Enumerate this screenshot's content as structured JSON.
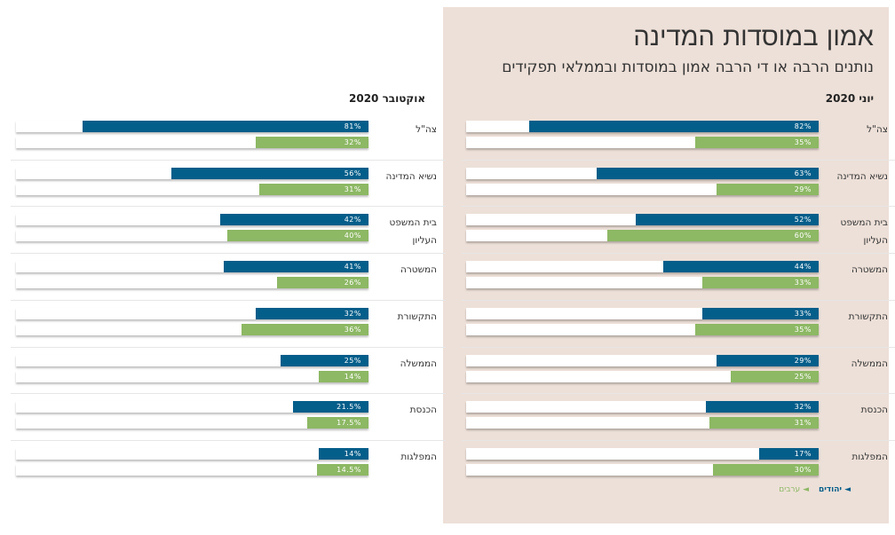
{
  "title": "אמון במוסדות המדינה",
  "subtitle": "נותנים הרבה או די הרבה אמון במוסדות ובממלאי תפקידים",
  "colors": {
    "jews": "#045e8a",
    "arabs": "#8db864",
    "panel_bg": "#ede0d8"
  },
  "legend": {
    "jews": "יהודים",
    "arabs": "ערבים",
    "marker": "◄"
  },
  "chart_data": [
    {
      "type": "bar",
      "title": "יוני 2020",
      "unit": "%",
      "xlim": [
        0,
        100
      ],
      "categories": [
        "צה\"ל",
        "נשיא המדינה",
        "בית המשפט העליון",
        "המשטרה",
        "התקשורת",
        "הממשלה",
        "הכנסת",
        "המפלגות"
      ],
      "series": [
        {
          "name": "יהודים",
          "values": [
            82,
            63,
            52,
            44,
            33,
            29,
            32,
            17
          ],
          "labels": [
            "82%",
            "63%",
            "52%",
            "44%",
            "33%",
            "29%",
            "32%",
            "17%"
          ]
        },
        {
          "name": "ערבים",
          "values": [
            35,
            29,
            60,
            33,
            35,
            25,
            31,
            30
          ],
          "labels": [
            "35%",
            "29%",
            "60%",
            "33%",
            "35%",
            "25%",
            "31%",
            "30%"
          ]
        }
      ]
    },
    {
      "type": "bar",
      "title": "אוקטובר 2020",
      "unit": "%",
      "xlim": [
        0,
        100
      ],
      "categories": [
        "צה\"ל",
        "נשיא המדינה",
        "בית המשפט העליון",
        "המשטרה",
        "התקשורת",
        "הממשלה",
        "הכנסת",
        "המפלגות"
      ],
      "series": [
        {
          "name": "יהודים",
          "values": [
            81,
            56,
            42,
            41,
            32,
            25,
            21.5,
            14
          ],
          "labels": [
            "81%",
            "56%",
            "42%",
            "41%",
            "32%",
            "25%",
            "21.5%",
            "14%"
          ]
        },
        {
          "name": "ערבים",
          "values": [
            32,
            31,
            40,
            26,
            36,
            14,
            17.5,
            14.5
          ],
          "labels": [
            "32%",
            "31%",
            "40%",
            "26%",
            "36%",
            "14%",
            "17.5%",
            "14.5%"
          ]
        }
      ]
    }
  ]
}
